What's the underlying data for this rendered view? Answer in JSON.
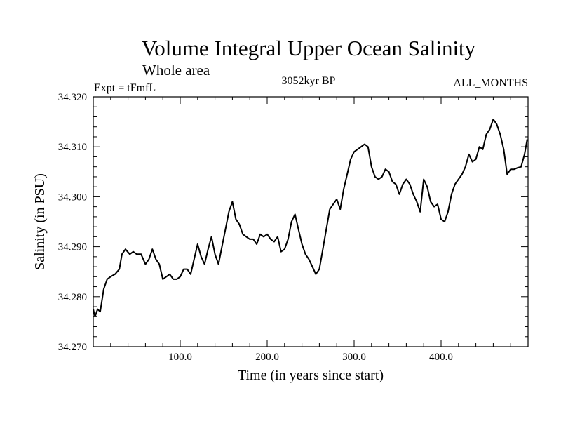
{
  "chart_data": {
    "type": "line",
    "title": "Volume Integral Upper Ocean Salinity",
    "subtitle": "Whole area",
    "experiment_label": "Expt = tFmfL",
    "period_label": "3052kyr BP",
    "months_label": "ALL_MONTHS",
    "xlabel": "Time (in years since start)",
    "ylabel": "Salinity (in PSU)",
    "xlim": [
      0,
      500
    ],
    "ylim": [
      34.27,
      34.32
    ],
    "x_ticks": [
      100,
      200,
      300,
      400
    ],
    "x_tick_labels": [
      "100.0",
      "200.0",
      "300.0",
      "400.0"
    ],
    "y_ticks": [
      34.27,
      34.28,
      34.29,
      34.3,
      34.31,
      34.32
    ],
    "y_tick_labels": [
      "34.270",
      "34.280",
      "34.290",
      "34.300",
      "34.310",
      "34.320"
    ],
    "series": [
      {
        "name": "Salinity",
        "x": [
          0,
          2,
          5,
          8,
          12,
          16,
          20,
          25,
          30,
          33,
          37,
          42,
          46,
          50,
          55,
          60,
          64,
          68,
          72,
          76,
          80,
          84,
          88,
          92,
          96,
          100,
          104,
          108,
          112,
          116,
          120,
          124,
          128,
          132,
          136,
          140,
          144,
          148,
          152,
          156,
          160,
          164,
          168,
          172,
          176,
          180,
          184,
          188,
          192,
          196,
          200,
          204,
          208,
          212,
          216,
          220,
          224,
          228,
          232,
          236,
          240,
          244,
          248,
          252,
          256,
          260,
          264,
          268,
          272,
          276,
          280,
          284,
          288,
          292,
          296,
          300,
          304,
          308,
          312,
          316,
          320,
          324,
          328,
          332,
          336,
          340,
          344,
          348,
          352,
          356,
          360,
          364,
          368,
          372,
          376,
          380,
          384,
          388,
          392,
          396,
          400,
          404,
          408,
          412,
          416,
          420,
          424,
          428,
          432,
          436,
          440,
          444,
          448,
          452,
          456,
          460,
          464,
          468,
          472,
          476,
          480,
          484,
          488,
          492,
          496,
          499
        ],
        "values": [
          34.2775,
          34.276,
          34.2775,
          34.277,
          34.2815,
          34.2835,
          34.284,
          34.2845,
          34.2855,
          34.2885,
          34.2895,
          34.2885,
          34.289,
          34.2885,
          34.2885,
          34.2865,
          34.2875,
          34.2895,
          34.2875,
          34.2865,
          34.2835,
          34.284,
          34.2845,
          34.2835,
          34.2835,
          34.284,
          34.2855,
          34.2855,
          34.2845,
          34.2875,
          34.2905,
          34.288,
          34.2865,
          34.2895,
          34.292,
          34.2885,
          34.2865,
          34.29,
          34.2935,
          34.297,
          34.299,
          34.2955,
          34.2945,
          34.2925,
          34.292,
          34.2915,
          34.2915,
          34.2905,
          34.2925,
          34.292,
          34.2925,
          34.2915,
          34.291,
          34.292,
          34.289,
          34.2895,
          34.2915,
          34.295,
          34.2965,
          34.2935,
          34.2905,
          34.2885,
          34.2875,
          34.286,
          34.2845,
          34.2855,
          34.2895,
          34.2935,
          34.2975,
          34.2985,
          34.2995,
          34.2975,
          34.3015,
          34.3045,
          34.3075,
          34.309,
          34.3095,
          34.31,
          34.3105,
          34.31,
          34.306,
          34.304,
          34.3035,
          34.304,
          34.3055,
          34.305,
          34.303,
          34.3025,
          34.3005,
          34.3025,
          34.3035,
          34.3025,
          34.3005,
          34.299,
          34.297,
          34.3035,
          34.302,
          34.299,
          34.298,
          34.2985,
          34.2955,
          34.295,
          34.297,
          34.3005,
          34.3025,
          34.3035,
          34.3045,
          34.306,
          34.3085,
          34.307,
          34.3075,
          34.31,
          34.3095,
          34.3125,
          34.3135,
          34.3155,
          34.3145,
          34.3125,
          34.3095,
          34.3045,
          34.3055,
          34.3055,
          34.3058,
          34.306,
          34.3085,
          34.3115
        ]
      }
    ]
  }
}
